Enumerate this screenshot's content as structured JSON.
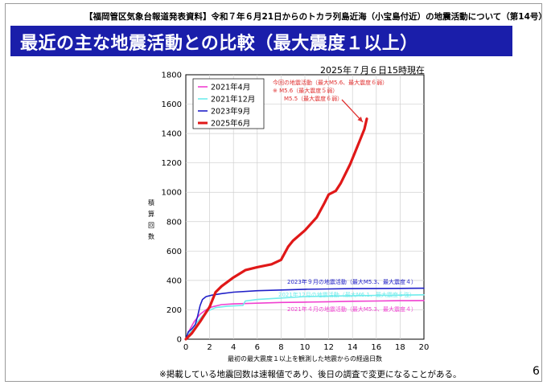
{
  "header": {
    "note": "【福岡管区気象台報道発表資料】令和７年６月21日からのトカラ列島近海（小宝島付近）の地震活動について（第14号）",
    "title": "最近の主な地震活動との比較（最大震度１以上）"
  },
  "timestamp": "2025年７月６日15時現在",
  "footnote": "※掲載している地震回数は速報値であり、後日の調査で変更になることがある。",
  "page_number": "6",
  "colors": {
    "title_bar": "#1a1eaa",
    "annotation": "#e03030"
  },
  "chart_data": {
    "type": "line",
    "xlabel": "最初の最大震度１以上を観測した地震からの経過日数",
    "ylabel": "積算回数",
    "xlim": [
      0,
      20
    ],
    "ylim": [
      0,
      1800
    ],
    "x_ticks": [
      0,
      2,
      4,
      6,
      8,
      10,
      12,
      14,
      16,
      18,
      20
    ],
    "y_ticks": [
      0,
      200,
      400,
      600,
      800,
      1000,
      1200,
      1400,
      1600,
      1800
    ],
    "grid": true,
    "legend_position": "top-left",
    "series": [
      {
        "name": "2021年4月",
        "color": "#f040d0",
        "points": [
          [
            0,
            0
          ],
          [
            0.3,
            60
          ],
          [
            0.7,
            120
          ],
          [
            1.2,
            170
          ],
          [
            1.7,
            200
          ],
          [
            2.2,
            220
          ],
          [
            3,
            235
          ],
          [
            4,
            240
          ],
          [
            6,
            245
          ],
          [
            8,
            250
          ],
          [
            10,
            252
          ],
          [
            12,
            255
          ],
          [
            14,
            258
          ],
          [
            16,
            260
          ],
          [
            18,
            262
          ],
          [
            20,
            263
          ]
        ]
      },
      {
        "name": "2021年12月",
        "color": "#70ecec",
        "points": [
          [
            0,
            0
          ],
          [
            0.3,
            40
          ],
          [
            0.8,
            100
          ],
          [
            1.3,
            150
          ],
          [
            1.8,
            190
          ],
          [
            2.5,
            215
          ],
          [
            3.5,
            225
          ],
          [
            4.8,
            230
          ],
          [
            5.0,
            260
          ],
          [
            6,
            270
          ],
          [
            8,
            280
          ],
          [
            10,
            290
          ],
          [
            12,
            293
          ],
          [
            14,
            296
          ],
          [
            16,
            298
          ],
          [
            18,
            300
          ],
          [
            20,
            302
          ]
        ]
      },
      {
        "name": "2023年9月",
        "color": "#2020c8",
        "points": [
          [
            0,
            0
          ],
          [
            0.2,
            50
          ],
          [
            0.5,
            70
          ],
          [
            0.8,
            100
          ],
          [
            1.0,
            160
          ],
          [
            1.2,
            230
          ],
          [
            1.4,
            270
          ],
          [
            1.7,
            290
          ],
          [
            2.2,
            300
          ],
          [
            3,
            310
          ],
          [
            4,
            320
          ],
          [
            6,
            330
          ],
          [
            8,
            335
          ],
          [
            10,
            340
          ],
          [
            12,
            342
          ],
          [
            14,
            344
          ],
          [
            16,
            345
          ],
          [
            18,
            346
          ],
          [
            20,
            347
          ]
        ]
      },
      {
        "name": "2025年6月",
        "color": "#e01818",
        "points": [
          [
            0,
            0
          ],
          [
            0.5,
            40
          ],
          [
            1.2,
            120
          ],
          [
            2.0,
            220
          ],
          [
            2.5,
            320
          ],
          [
            3.0,
            360
          ],
          [
            4.0,
            420
          ],
          [
            5.0,
            470
          ],
          [
            6.0,
            490
          ],
          [
            7.2,
            510
          ],
          [
            8.0,
            540
          ],
          [
            8.6,
            630
          ],
          [
            9.0,
            670
          ],
          [
            10.0,
            740
          ],
          [
            11.0,
            830
          ],
          [
            11.6,
            920
          ],
          [
            12.0,
            985
          ],
          [
            12.6,
            1010
          ],
          [
            13.0,
            1060
          ],
          [
            13.8,
            1190
          ],
          [
            14.2,
            1270
          ],
          [
            14.6,
            1350
          ],
          [
            15.0,
            1430
          ],
          [
            15.2,
            1500
          ]
        ]
      }
    ],
    "annotations": [
      {
        "text": "今回の地震活動（最大M5.6、最大震度６弱）",
        "color": "#e03030"
      },
      {
        "text": "※ M5.6（最大震度５弱）",
        "color": "#e03030"
      },
      {
        "text": "M5.5（最大震度６弱）",
        "color": "#e03030"
      },
      {
        "text": "2023年９月の地震活動（最大M5.3、最大震度４）",
        "color": "#2020c8"
      },
      {
        "text": "2021年12月の地震活動（最大M6.1、最大震度５強）",
        "color": "#70ecec"
      },
      {
        "text": "2021年４月の地震活動（最大M5.3、最大震度４）",
        "color": "#f040d0"
      }
    ]
  }
}
